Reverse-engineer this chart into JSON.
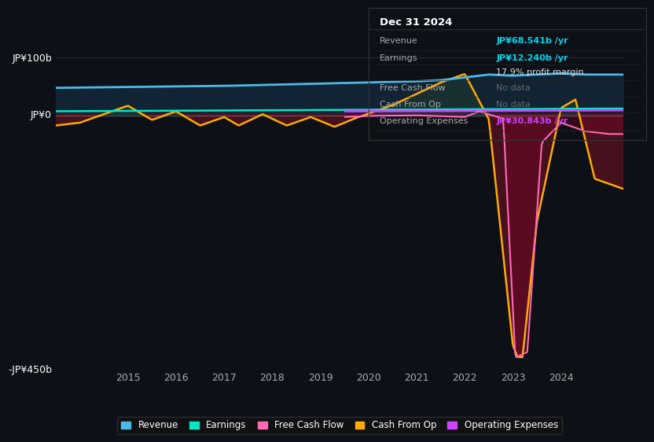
{
  "bg_color": "#0d1117",
  "plot_bg_color": "#0d1117",
  "grid_color": "#1e2a3a",
  "title_text": "Dec 31 2024",
  "ylim": [
    -450,
    110
  ],
  "yticks": [
    100,
    0,
    -450
  ],
  "ytick_labels": [
    "JP¥100b",
    "JP¥0",
    "-JP¥450b"
  ],
  "xtick_positions": [
    2015,
    2016,
    2017,
    2018,
    2019,
    2020,
    2021,
    2022,
    2023,
    2024
  ],
  "xtick_labels": [
    "2015",
    "2016",
    "2017",
    "2018",
    "2019",
    "2020",
    "2021",
    "2022",
    "2023",
    "2024"
  ],
  "legend_items": [
    {
      "label": "Revenue",
      "color": "#4db8e8"
    },
    {
      "label": "Earnings",
      "color": "#00e8c8"
    },
    {
      "label": "Free Cash Flow",
      "color": "#ff69b4"
    },
    {
      "label": "Cash From Op",
      "color": "#ffaa00"
    },
    {
      "label": "Operating Expenses",
      "color": "#cc44ff"
    }
  ],
  "revenue_color": "#4db8e8",
  "earnings_color": "#00e8c8",
  "free_cash_flow_color": "#ff69b4",
  "cash_from_op_color": "#ffaa00",
  "op_expenses_color": "#cc44ff",
  "revenue_fill_color": "#1a4060",
  "neg_fill_color": "#5a1020",
  "info_date": "Dec 31 2024",
  "info_rows": [
    {
      "label": "Revenue",
      "value": "JP¥68.541b /yr",
      "color": "#00d4e8"
    },
    {
      "label": "Earnings",
      "value": "JP¥12.240b /yr",
      "color": "#00d4e8"
    },
    {
      "label": "",
      "value": "17.9% profit margin",
      "color": "#ffffff"
    },
    {
      "label": "Free Cash Flow",
      "value": "No data",
      "color": "#666666"
    },
    {
      "label": "Cash From Op",
      "value": "No data",
      "color": "#666666"
    },
    {
      "label": "Operating Expenses",
      "value": "JP¥30.843b /yr",
      "color": "#cc44ff"
    }
  ]
}
